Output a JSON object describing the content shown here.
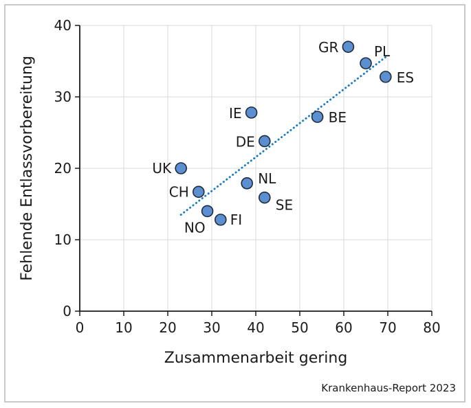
{
  "chart_data": {
    "type": "scatter",
    "title": "",
    "xlabel": "Zusammenarbeit gering",
    "ylabel": "Fehlende Entlassvorbereitung",
    "xlim": [
      0,
      80
    ],
    "ylim": [
      0,
      40
    ],
    "xticks": [
      0,
      10,
      20,
      30,
      40,
      50,
      60,
      70,
      80
    ],
    "yticks": [
      0,
      10,
      20,
      30,
      40
    ],
    "grid": true,
    "points": [
      {
        "label": "GR",
        "x": 61,
        "y": 37
      },
      {
        "label": "PL",
        "x": 65,
        "y": 34.7
      },
      {
        "label": "ES",
        "x": 69.5,
        "y": 32.8
      },
      {
        "label": "IE",
        "x": 39,
        "y": 27.8
      },
      {
        "label": "BE",
        "x": 54,
        "y": 27.2
      },
      {
        "label": "DE",
        "x": 42,
        "y": 23.8
      },
      {
        "label": "UK",
        "x": 23,
        "y": 20
      },
      {
        "label": "NL",
        "x": 38,
        "y": 17.9
      },
      {
        "label": "CH",
        "x": 27,
        "y": 16.7
      },
      {
        "label": "SE",
        "x": 42,
        "y": 15.9
      },
      {
        "label": "NO",
        "x": 29,
        "y": 14
      },
      {
        "label": "FI",
        "x": 32,
        "y": 12.8
      }
    ],
    "trendline": {
      "style": "dotted",
      "x": [
        23,
        70
      ],
      "y": [
        13.5,
        35.8
      ]
    },
    "colors": {
      "point_fill": "#5b8fd0",
      "point_stroke": "#1f2a3a",
      "trendline": "#1a7bc0",
      "grid": "#d8d8d8",
      "axis": "#1a1a1a"
    }
  },
  "source": "Krankenhaus-Report 2023"
}
